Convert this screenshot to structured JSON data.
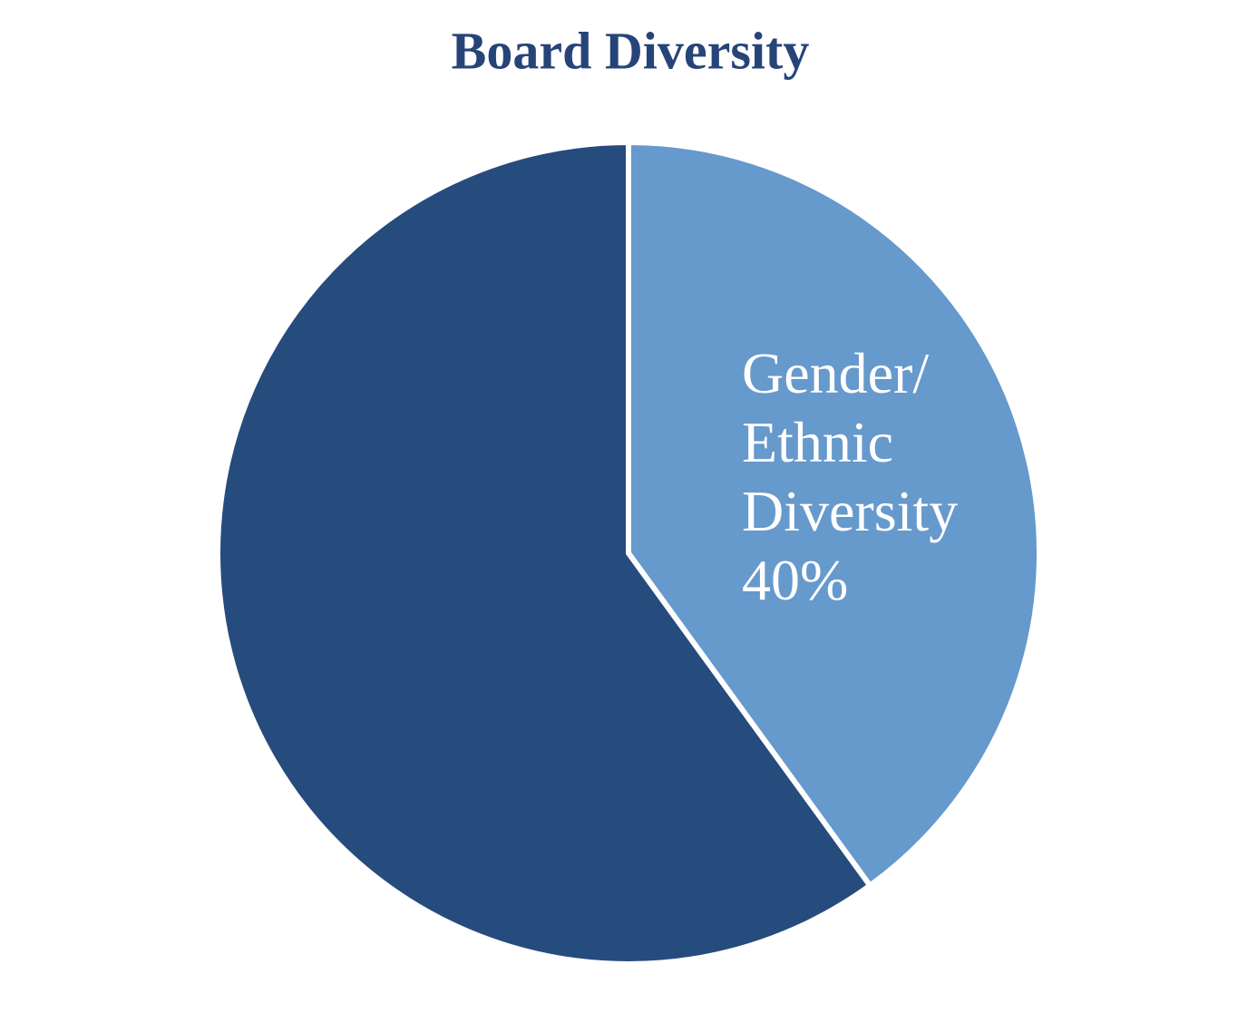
{
  "chart_data": {
    "type": "pie",
    "title": "Board Diversity",
    "categories": [
      "Gender/ Ethnic Diversity",
      null
    ],
    "values": [
      40,
      60
    ],
    "value_labels": [
      "40%",
      null
    ],
    "colors": [
      "#6699cc",
      "#264b7d"
    ]
  }
}
